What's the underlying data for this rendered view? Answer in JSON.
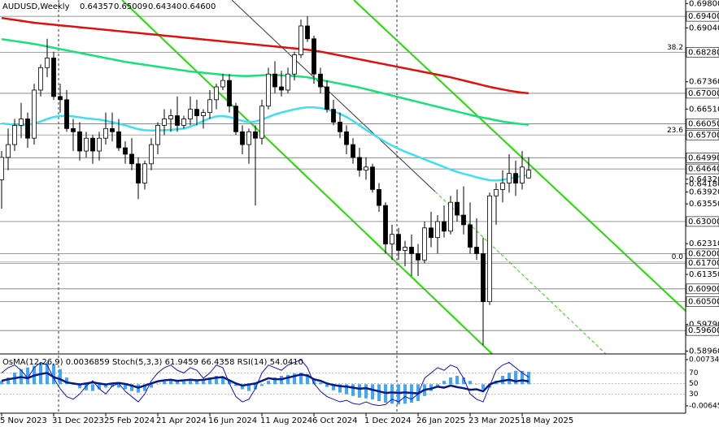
{
  "chart_data": {
    "type": "candlestick",
    "title": "AUDUSD,Weekly",
    "ohlc_labels": [
      "0.64357",
      "0.65009",
      "0.64340",
      "0.64600"
    ],
    "indicator_label": "OsMA(12,26,9) 0.0036859 Stoch(5,3,3) 61.9459 66.4358 RSI(14) 54.0410",
    "categories": [
      "5 Nov 2023",
      null,
      null,
      null,
      null,
      null,
      null,
      null,
      "31 Dec 2023",
      null,
      null,
      null,
      null,
      null,
      null,
      null,
      "25 Feb 2024",
      null,
      null,
      null,
      null,
      null,
      null,
      null,
      "21 Apr 2024",
      null,
      null,
      null,
      null,
      null,
      null,
      null,
      "16 Jun 2024",
      null,
      null,
      null,
      null,
      null,
      null,
      null,
      "11 Aug 2024",
      null,
      null,
      null,
      null,
      null,
      null,
      null,
      "6 Oct 2024",
      null,
      null,
      null,
      null,
      null,
      null,
      null,
      "1 Dec 2024",
      null,
      null,
      null,
      null,
      null,
      null,
      null,
      "26 Jan 2025",
      null,
      null,
      null,
      null,
      null,
      null,
      null,
      "23 Mar 2025",
      null,
      null,
      null,
      null,
      null,
      null,
      null,
      "18 May 2025",
      null
    ],
    "open": [
      0.643,
      0.65,
      0.654,
      0.66,
      0.662,
      0.656,
      0.671,
      0.678,
      0.681,
      0.669,
      0.668,
      0.659,
      0.658,
      0.652,
      0.656,
      0.652,
      0.656,
      0.659,
      0.658,
      0.653,
      0.651,
      0.648,
      0.642,
      0.648,
      0.654,
      0.66,
      0.662,
      0.663,
      0.66,
      0.662,
      0.665,
      0.663,
      0.664,
      0.668,
      0.672,
      0.674,
      0.666,
      0.658,
      0.654,
      0.658,
      0.656,
      0.666,
      0.676,
      0.672,
      0.671,
      0.676,
      0.682,
      0.691,
      0.687,
      0.676,
      0.672,
      0.665,
      0.661,
      0.658,
      0.654,
      0.65,
      0.646,
      0.647,
      0.64,
      0.635,
      0.623,
      0.626,
      0.621,
      0.622,
      0.62,
      0.618,
      0.628,
      0.625,
      0.63,
      0.627,
      0.636,
      0.632,
      0.629,
      0.622,
      0.62,
      0.605,
      0.638,
      0.64,
      0.642,
      0.645,
      0.642,
      0.6436
    ],
    "high": [
      0.652,
      0.659,
      0.662,
      0.667,
      0.664,
      0.673,
      0.679,
      0.687,
      0.683,
      0.673,
      0.671,
      0.662,
      0.661,
      0.658,
      0.657,
      0.658,
      0.664,
      0.664,
      0.662,
      0.655,
      0.656,
      0.65,
      0.649,
      0.656,
      0.661,
      0.665,
      0.665,
      0.669,
      0.663,
      0.669,
      0.668,
      0.665,
      0.671,
      0.673,
      0.676,
      0.676,
      0.667,
      0.66,
      0.659,
      0.66,
      0.668,
      0.678,
      0.68,
      0.677,
      0.678,
      0.683,
      0.693,
      0.694,
      0.688,
      0.678,
      0.674,
      0.668,
      0.664,
      0.66,
      0.656,
      0.653,
      0.65,
      0.648,
      0.642,
      0.636,
      0.629,
      0.628,
      0.624,
      0.626,
      0.623,
      0.63,
      0.633,
      0.632,
      0.635,
      0.638,
      0.64,
      0.641,
      0.636,
      0.631,
      0.625,
      0.639,
      0.642,
      0.646,
      0.651,
      0.649,
      0.652,
      0.6501
    ],
    "low": [
      0.634,
      0.646,
      0.652,
      0.656,
      0.653,
      0.654,
      0.669,
      0.675,
      0.668,
      0.664,
      0.658,
      0.652,
      0.649,
      0.65,
      0.648,
      0.649,
      0.654,
      0.655,
      0.652,
      0.648,
      0.646,
      0.637,
      0.64,
      0.646,
      0.651,
      0.657,
      0.658,
      0.658,
      0.659,
      0.66,
      0.66,
      0.659,
      0.662,
      0.665,
      0.671,
      0.664,
      0.657,
      0.651,
      0.648,
      0.635,
      0.654,
      0.665,
      0.67,
      0.669,
      0.67,
      0.674,
      0.681,
      0.686,
      0.673,
      0.67,
      0.664,
      0.66,
      0.656,
      0.651,
      0.648,
      0.644,
      0.643,
      0.639,
      0.633,
      0.62,
      0.618,
      0.618,
      0.616,
      0.613,
      0.613,
      0.617,
      0.622,
      0.62,
      0.625,
      0.626,
      0.63,
      0.626,
      0.62,
      0.618,
      0.5915,
      0.604,
      0.629,
      0.636,
      0.639,
      0.638,
      0.64,
      0.6434
    ],
    "close": [
      0.65,
      0.654,
      0.66,
      0.662,
      0.656,
      0.671,
      0.678,
      0.681,
      0.669,
      0.668,
      0.659,
      0.658,
      0.652,
      0.656,
      0.652,
      0.656,
      0.659,
      0.658,
      0.653,
      0.651,
      0.648,
      0.642,
      0.648,
      0.654,
      0.66,
      0.662,
      0.663,
      0.66,
      0.662,
      0.665,
      0.663,
      0.664,
      0.668,
      0.672,
      0.674,
      0.666,
      0.658,
      0.654,
      0.658,
      0.656,
      0.666,
      0.676,
      0.672,
      0.671,
      0.676,
      0.682,
      0.691,
      0.687,
      0.676,
      0.672,
      0.665,
      0.661,
      0.658,
      0.654,
      0.65,
      0.646,
      0.647,
      0.64,
      0.635,
      0.623,
      0.626,
      0.621,
      0.622,
      0.62,
      0.618,
      0.628,
      0.625,
      0.63,
      0.627,
      0.636,
      0.632,
      0.629,
      0.622,
      0.62,
      0.605,
      0.638,
      0.64,
      0.642,
      0.645,
      0.642,
      0.647,
      0.646
    ],
    "series": [
      {
        "color": "#e01010",
        "values": [
          0.6935,
          0.6932,
          0.6929,
          0.6926,
          0.6923,
          0.692,
          0.6918,
          0.6916,
          0.6914,
          0.6912,
          0.691,
          0.6908,
          0.6906,
          0.6904,
          0.6902,
          0.69,
          0.6898,
          0.6896,
          0.6894,
          0.6892,
          0.689,
          0.6888,
          0.6886,
          0.6884,
          0.6882,
          0.688,
          0.6878,
          0.6876,
          0.6874,
          0.6872,
          0.687,
          0.6868,
          0.6866,
          0.6864,
          0.6862,
          0.686,
          0.6858,
          0.6856,
          0.6854,
          0.6852,
          0.685,
          0.6848,
          0.6846,
          0.6844,
          0.6842,
          0.684,
          0.6838,
          0.6836,
          0.6833,
          0.683,
          0.6826,
          0.6822,
          0.6818,
          0.6814,
          0.681,
          0.6806,
          0.6802,
          0.6798,
          0.6794,
          0.679,
          0.6786,
          0.6782,
          0.6778,
          0.6774,
          0.677,
          0.6766,
          0.6762,
          0.6758,
          0.6754,
          0.675,
          0.6745,
          0.674,
          0.6735,
          0.673,
          0.6725,
          0.672,
          0.6716,
          0.6712,
          0.6708,
          0.6705,
          0.6702,
          0.67
        ]
      },
      {
        "color": "#18e07a",
        "values": [
          0.6869,
          0.6866,
          0.6863,
          0.686,
          0.6857,
          0.6854,
          0.685,
          0.6846,
          0.6842,
          0.6838,
          0.6834,
          0.683,
          0.6826,
          0.6822,
          0.6818,
          0.6814,
          0.681,
          0.6806,
          0.6802,
          0.6798,
          0.6795,
          0.6792,
          0.6789,
          0.6786,
          0.6783,
          0.678,
          0.6777,
          0.6774,
          0.6771,
          0.6768,
          0.6766,
          0.6764,
          0.6762,
          0.676,
          0.6758,
          0.6756,
          0.6755,
          0.6754,
          0.6754,
          0.6755,
          0.6756,
          0.6757,
          0.6757,
          0.6756,
          0.6755,
          0.6754,
          0.6752,
          0.675,
          0.6746,
          0.6742,
          0.6738,
          0.6734,
          0.673,
          0.6726,
          0.6722,
          0.6718,
          0.6713,
          0.6708,
          0.6703,
          0.6698,
          0.6693,
          0.6688,
          0.6683,
          0.6678,
          0.6673,
          0.6668,
          0.6663,
          0.6658,
          0.6653,
          0.6648,
          0.6643,
          0.6638,
          0.6633,
          0.6628,
          0.6624,
          0.662,
          0.6616,
          0.6612,
          0.6609,
          0.6606,
          0.6604,
          0.6602
        ]
      },
      {
        "color": "#3ee0f0",
        "values": [
          0.6606,
          0.6604,
          0.6602,
          0.66,
          0.6602,
          0.6606,
          0.6612,
          0.662,
          0.6626,
          0.6629,
          0.663,
          0.6628,
          0.6625,
          0.6622,
          0.662,
          0.6618,
          0.6614,
          0.661,
          0.6605,
          0.66,
          0.6594,
          0.6588,
          0.6585,
          0.6584,
          0.6584,
          0.6585,
          0.6586,
          0.6588,
          0.659,
          0.6596,
          0.6604,
          0.6614,
          0.6622,
          0.6628,
          0.6629,
          0.6626,
          0.662,
          0.6614,
          0.661,
          0.6612,
          0.6618,
          0.6626,
          0.6634,
          0.664,
          0.6645,
          0.665,
          0.6654,
          0.6656,
          0.6656,
          0.6654,
          0.665,
          0.6644,
          0.6636,
          0.6626,
          0.6614,
          0.66,
          0.6586,
          0.6573,
          0.656,
          0.6548,
          0.6537,
          0.6527,
          0.6518,
          0.651,
          0.6502,
          0.6494,
          0.6486,
          0.6478,
          0.647,
          0.6462,
          0.6455,
          0.6449,
          0.6444,
          0.6438,
          0.6433,
          0.6429,
          0.6428,
          0.643,
          0.6434,
          0.6438,
          0.6442,
          0.6446
        ]
      }
    ],
    "ylim": [
      0.5887,
      0.6991
    ],
    "yticks": [
      {
        "value": 0.698,
        "label": "0.69800"
      },
      {
        "value": 0.6904,
        "label": "0.69040"
      },
      {
        "value": 0.6736,
        "label": "0.67360"
      },
      {
        "value": 0.6651,
        "label": "0.66510"
      },
      {
        "value": 0.6432,
        "label": "0.64320"
      },
      {
        "value": 0.6418,
        "label": "0.64180"
      },
      {
        "value": 0.6392,
        "label": "0.63920"
      },
      {
        "value": 0.6355,
        "label": "0.63550"
      },
      {
        "value": 0.6231,
        "label": "0.62310"
      },
      {
        "value": 0.6135,
        "label": "0.61350"
      },
      {
        "value": 0.5979,
        "label": "0.59790"
      },
      {
        "value": 0.5896,
        "label": "0.58960"
      }
    ],
    "levels": [
      {
        "value": 0.694,
        "label": "0.69400"
      },
      {
        "value": 0.6828,
        "label": "0.68280"
      },
      {
        "value": 0.67,
        "label": "0.67000"
      },
      {
        "value": 0.6605,
        "label": "0.66050"
      },
      {
        "value": 0.657,
        "label": "0.65700"
      },
      {
        "value": 0.6499,
        "label": "0.64990"
      },
      {
        "value": 0.6464,
        "label": "0.64640"
      },
      {
        "value": 0.63,
        "label": "0.63000"
      },
      {
        "value": 0.62,
        "label": "0.62000"
      },
      {
        "value": 0.617,
        "label": "0.61700"
      },
      {
        "value": 0.609,
        "label": "0.60900"
      },
      {
        "value": 0.605,
        "label": "0.60500"
      },
      {
        "value": 0.596,
        "label": "0.59600"
      }
    ],
    "fib_levels": [
      {
        "label": "38.2",
        "value": 0.6828
      },
      {
        "label": "23.6",
        "value": 0.657
      },
      {
        "label": "0.0",
        "value": 0.6175
      }
    ],
    "osma": {
      "color": "#40a8f0",
      "values": [
        0.001,
        0.002,
        0.0035,
        0.0045,
        0.005,
        0.0055,
        0.0062,
        0.0065,
        0.006,
        0.0045,
        0.002,
        0.0,
        -0.0012,
        -0.0018,
        -0.002,
        -0.0015,
        -0.001,
        -0.0008,
        -0.001,
        -0.0015,
        -0.002,
        -0.0025,
        -0.002,
        -0.001,
        0.0,
        0.0008,
        0.0012,
        0.001,
        0.0008,
        0.001,
        0.0012,
        0.0015,
        0.002,
        0.0025,
        0.0022,
        0.001,
        -0.0005,
        -0.0015,
        -0.002,
        -0.0015,
        -0.0005,
        0.001,
        0.002,
        0.0025,
        0.0028,
        0.0032,
        0.0035,
        0.003,
        0.0015,
        0.0005,
        -0.0008,
        -0.0018,
        -0.0025,
        -0.003,
        -0.0035,
        -0.004,
        -0.0042,
        -0.0045,
        -0.005,
        -0.0055,
        -0.0058,
        -0.006,
        -0.0058,
        -0.0055,
        -0.005,
        -0.0035,
        -0.002,
        -0.0005,
        0.001,
        0.002,
        0.0025,
        0.002,
        0.001,
        0.0,
        -0.0015,
        -0.001,
        0.001,
        0.0025,
        0.0035,
        0.004,
        0.004,
        0.0037
      ],
      "lim": [
        -0.00839,
        0.00855
      ],
      "ticks": [
        {
          "value": 0.00734,
          "label": "0.007340"
        },
        {
          "value": -0.00645,
          "label": "-0.00645"
        }
      ]
    },
    "stoch": {
      "color": "#1010d0",
      "values": [
        70,
        80,
        85,
        75,
        60,
        80,
        90,
        85,
        60,
        40,
        25,
        20,
        30,
        45,
        55,
        40,
        30,
        45,
        50,
        35,
        25,
        15,
        30,
        55,
        70,
        80,
        85,
        75,
        70,
        80,
        75,
        60,
        70,
        85,
        80,
        50,
        25,
        15,
        20,
        40,
        70,
        85,
        80,
        75,
        85,
        90,
        95,
        80,
        50,
        35,
        25,
        20,
        15,
        18,
        12,
        10,
        15,
        10,
        8,
        10,
        20,
        15,
        25,
        20,
        30,
        60,
        70,
        80,
        75,
        85,
        80,
        60,
        30,
        20,
        15,
        45,
        75,
        85,
        90,
        80,
        70,
        62
      ]
    },
    "rsi": {
      "color": "#0a1a8a",
      "values": [
        55,
        58,
        60,
        62,
        60,
        65,
        68,
        70,
        62,
        58,
        52,
        50,
        48,
        50,
        52,
        50,
        48,
        50,
        51,
        49,
        46,
        42,
        46,
        50,
        54,
        56,
        57,
        55,
        56,
        57,
        56,
        57,
        59,
        61,
        62,
        56,
        50,
        46,
        48,
        50,
        55,
        60,
        58,
        58,
        61,
        64,
        67,
        65,
        58,
        55,
        50,
        47,
        45,
        44,
        42,
        40,
        41,
        38,
        35,
        32,
        33,
        32,
        33,
        32,
        31,
        38,
        40,
        44,
        42,
        46,
        43,
        41,
        38,
        39,
        35,
        48,
        53,
        55,
        57,
        54,
        56,
        54
      ]
    },
    "osc_lim": [
      -5,
      103
    ],
    "osc_ticks": [
      70,
      50,
      30
    ],
    "up_color": "#ffffff",
    "down_color": "#000000"
  }
}
